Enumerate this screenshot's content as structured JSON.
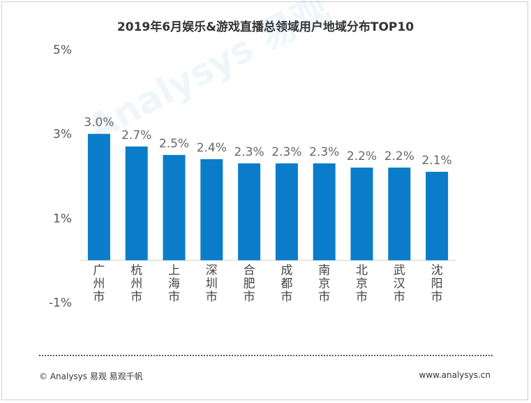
{
  "chart_data": {
    "type": "bar",
    "title": "2019年6月娱乐&游戏直播总领域用户地域分布TOP10",
    "categories": [
      "广州市",
      "杭州市",
      "上海市",
      "深圳市",
      "合肥市",
      "成都市",
      "南京市",
      "北京市",
      "武汉市",
      "沈阳市"
    ],
    "values": [
      3.0,
      2.7,
      2.5,
      2.4,
      2.3,
      2.3,
      2.3,
      2.2,
      2.2,
      2.1
    ],
    "value_labels": [
      "3.0%",
      "2.7%",
      "2.5%",
      "2.4%",
      "2.3%",
      "2.3%",
      "2.3%",
      "2.2%",
      "2.2%",
      "2.1%"
    ],
    "yticks": [
      5,
      3,
      1,
      -1
    ],
    "ytick_labels": [
      "5%",
      "3%",
      "1%",
      "-1%"
    ],
    "ylim": [
      -1,
      5
    ],
    "grid": false,
    "bar_color": "#0a7cc9",
    "xlabel": "",
    "ylabel": ""
  },
  "footer": {
    "copyright": "© Analysys 易观 易观千帆",
    "website": "www.analysys.cn"
  },
  "watermark": "Analysys 易观"
}
